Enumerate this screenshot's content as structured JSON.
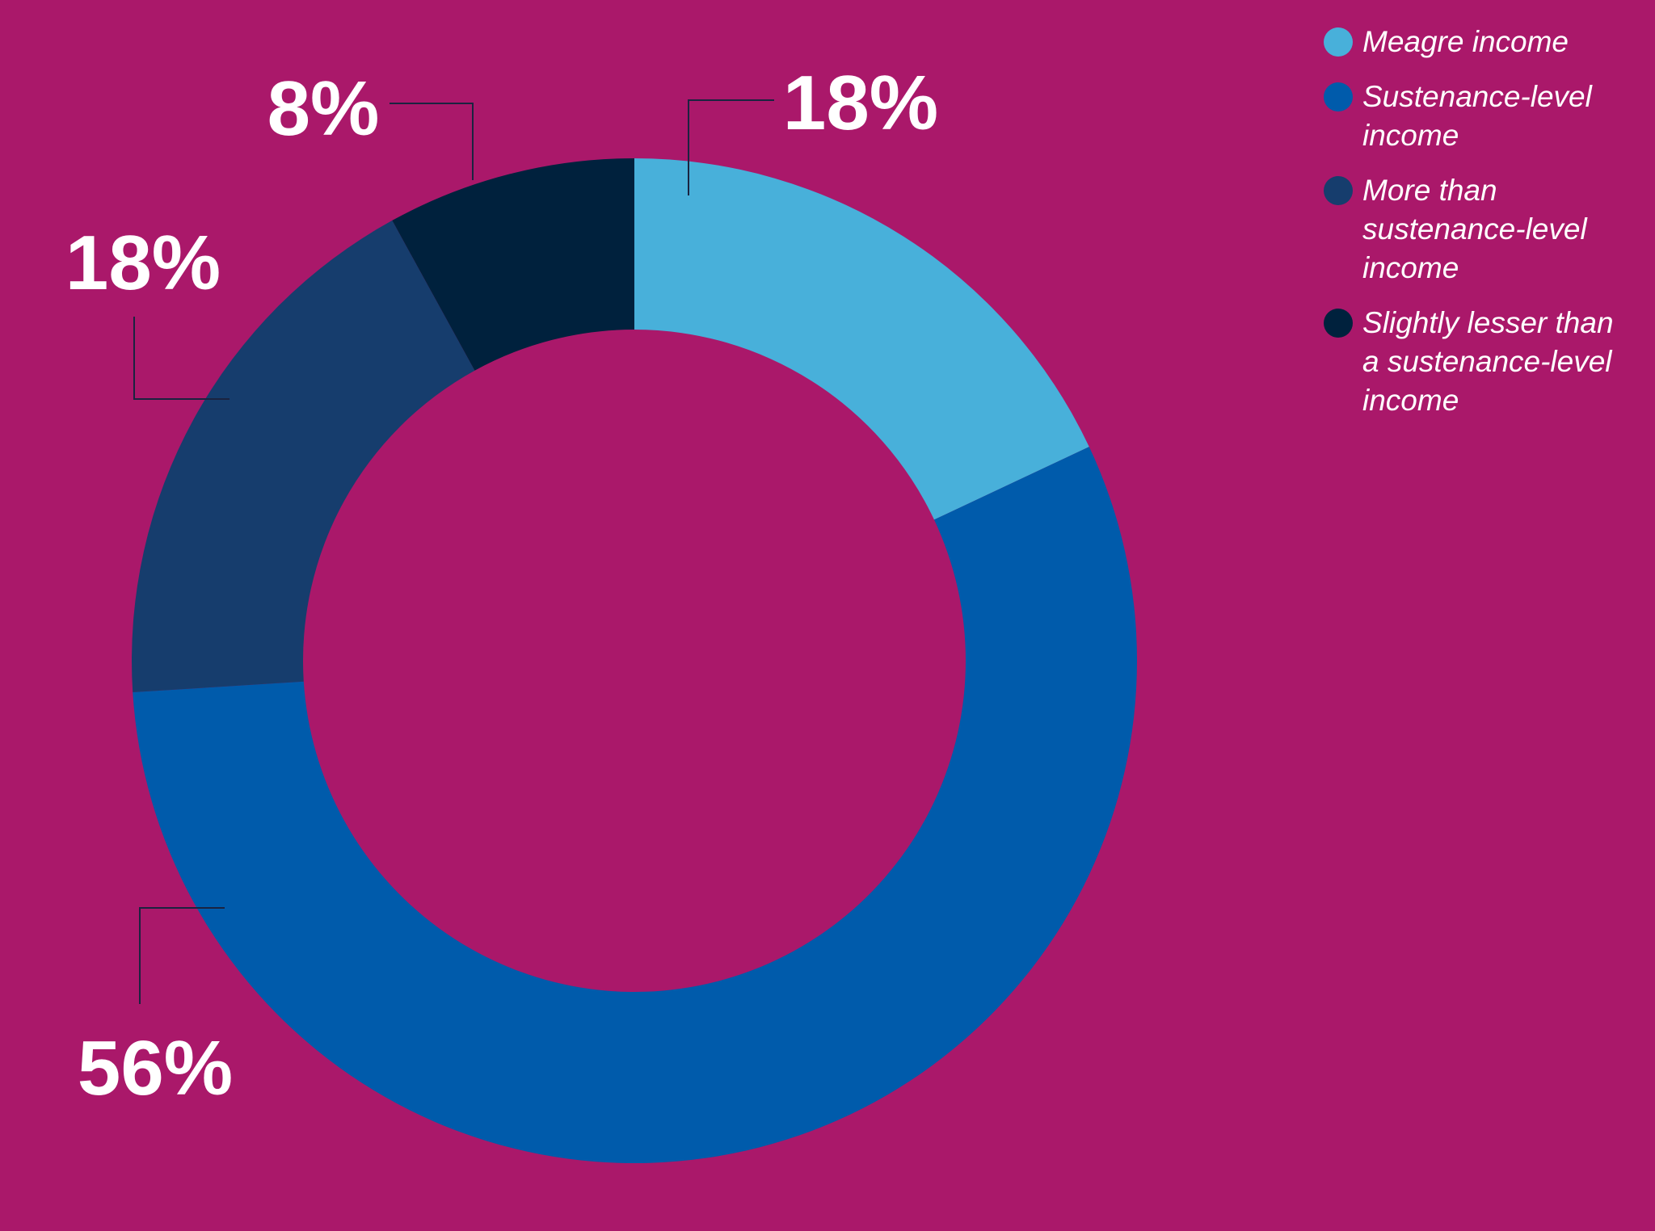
{
  "colors": {
    "background": "#aa186a",
    "leader_line": "#1a2340",
    "label_text": "#ffffff"
  },
  "chart_data": {
    "type": "pie",
    "variant": "donut",
    "title": "",
    "slices": [
      {
        "label": "Meagre income",
        "value": 18,
        "value_label": "18%",
        "color": "#48b0da"
      },
      {
        "label": "Sustenance-level income",
        "value": 56,
        "value_label": "56%",
        "color": "#005bab"
      },
      {
        "label": "More than sustenance-level income",
        "value": 18,
        "value_label": "18%",
        "color": "#163d6d"
      },
      {
        "label": "Slightly lesser than a sustenance-level income",
        "value": 8,
        "value_label": "8%",
        "color": "#00213d"
      }
    ],
    "legend": {
      "position": "top-right",
      "entries": [
        {
          "text": "Meagre income",
          "color": "#48b0da"
        },
        {
          "text": "Sustenance-level\nincome",
          "color": "#005bab"
        },
        {
          "text": "More than\nsustenance-level\nincome",
          "color": "#163d6d"
        },
        {
          "text": "Slightly lesser than\na sustenance-level\nincome",
          "color": "#00213d"
        }
      ]
    }
  }
}
